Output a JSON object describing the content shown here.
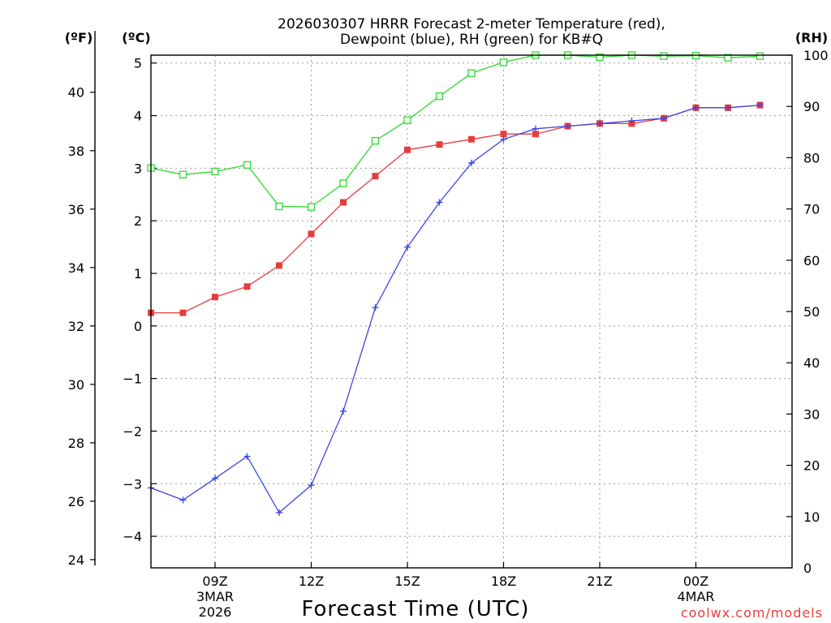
{
  "chart_data": {
    "type": "line",
    "title_line1": "2026030307 HRRR Forecast 2-meter Temperature (red),",
    "title_line2": "Dewpoint (blue), RH (green) for KB#Q",
    "xlabel": "Forecast Time (UTC)",
    "credit": "coolwx.com/models",
    "unit_f": "(ºF)",
    "unit_c": "(ºC)",
    "unit_rh": "(RH)",
    "x_hours_since_06Z": [
      1,
      2,
      3,
      4,
      5,
      6,
      7,
      8,
      9,
      10,
      11,
      12,
      13,
      14,
      15,
      16,
      17,
      18,
      19,
      20
    ],
    "x_range": [
      1,
      21
    ],
    "x_ticks": [
      {
        "x": 3,
        "label": "09Z",
        "sub1": "3MAR",
        "sub2": "2026"
      },
      {
        "x": 6,
        "label": "12Z",
        "sub1": "",
        "sub2": ""
      },
      {
        "x": 9,
        "label": "15Z",
        "sub1": "",
        "sub2": ""
      },
      {
        "x": 12,
        "label": "18Z",
        "sub1": "",
        "sub2": ""
      },
      {
        "x": 15,
        "label": "21Z",
        "sub1": "",
        "sub2": ""
      },
      {
        "x": 18,
        "label": "00Z",
        "sub1": "4MAR",
        "sub2": ""
      }
    ],
    "y_celsius_range": [
      -4.6,
      5.15
    ],
    "y_celsius_ticks": [
      {
        "v": -4,
        "label": "−4"
      },
      {
        "v": -3,
        "label": "−3"
      },
      {
        "v": -2,
        "label": "−2"
      },
      {
        "v": -1,
        "label": "−1"
      },
      {
        "v": 0,
        "label": "0"
      },
      {
        "v": 1,
        "label": "1"
      },
      {
        "v": 2,
        "label": "2"
      },
      {
        "v": 3,
        "label": "3"
      },
      {
        "v": 4,
        "label": "4"
      },
      {
        "v": 5,
        "label": "5"
      }
    ],
    "y_fahrenheit_ticks": [
      24,
      26,
      28,
      30,
      32,
      34,
      36,
      38,
      40
    ],
    "y_rh_range": [
      0,
      100
    ],
    "y_rh_ticks": [
      0,
      10,
      20,
      30,
      40,
      50,
      60,
      70,
      80,
      90,
      100
    ],
    "series": [
      {
        "name": "Temperature",
        "axis": "celsius",
        "color": "#e83c3c",
        "marker": "filled-square",
        "values": [
          0.25,
          0.25,
          0.55,
          0.75,
          1.15,
          1.75,
          2.35,
          2.85,
          3.35,
          3.45,
          3.55,
          3.65,
          3.65,
          3.8,
          3.85,
          3.85,
          3.95,
          4.15,
          4.15,
          4.2
        ]
      },
      {
        "name": "Dewpoint",
        "axis": "celsius",
        "color": "#3c46e6",
        "marker": "plus",
        "values": [
          -3.08,
          -3.31,
          -2.9,
          -2.48,
          -3.55,
          -3.03,
          -1.62,
          0.35,
          1.5,
          2.35,
          3.1,
          3.55,
          3.75,
          3.8,
          3.85,
          3.9,
          3.95,
          4.15,
          4.15,
          4.2
        ]
      },
      {
        "name": "RH",
        "axis": "rh",
        "color": "#2ed82e",
        "marker": "open-square",
        "values": [
          78.0,
          76.7,
          77.3,
          78.6,
          70.5,
          70.4,
          75.0,
          83.3,
          87.3,
          92.0,
          96.5,
          98.6,
          100,
          100,
          99.6,
          100,
          99.8,
          99.9,
          99.5,
          99.8
        ]
      }
    ]
  }
}
